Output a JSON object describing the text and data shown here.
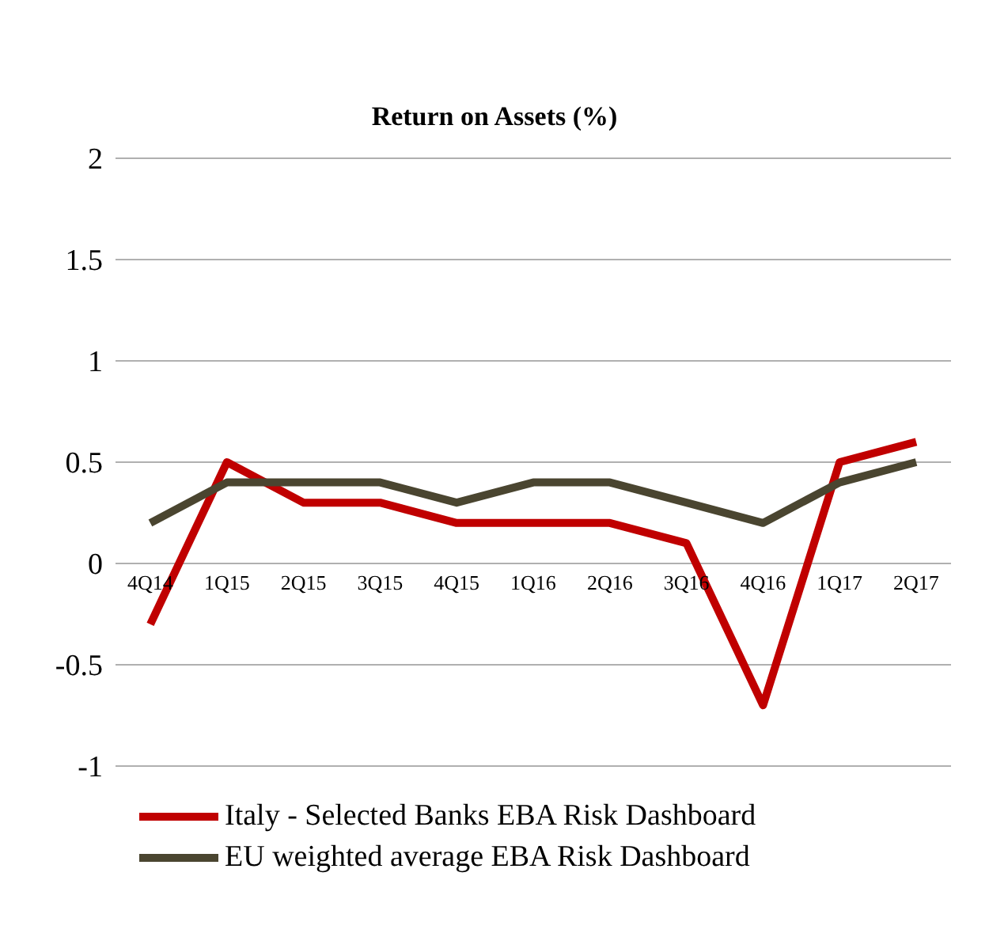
{
  "chart_data": {
    "type": "line",
    "title": "Return on Assets (%)",
    "categories": [
      "4Q14",
      "1Q15",
      "2Q15",
      "3Q15",
      "4Q15",
      "1Q16",
      "2Q16",
      "3Q16",
      "4Q16",
      "1Q17",
      "2Q17"
    ],
    "series": [
      {
        "name": "Italy - Selected Banks EBA Risk Dashboard",
        "color": "#c00000",
        "values": [
          -0.3,
          0.5,
          0.3,
          0.3,
          0.2,
          0.2,
          0.2,
          0.1,
          -0.7,
          0.5,
          0.6
        ]
      },
      {
        "name": "EU weighted average EBA Risk Dashboard",
        "color": "#4a4530",
        "values": [
          0.2,
          0.4,
          0.4,
          0.4,
          0.3,
          0.4,
          0.4,
          0.3,
          0.2,
          0.4,
          0.5
        ]
      }
    ],
    "ylim": [
      -1,
      2
    ],
    "yticks": [
      -1,
      -0.5,
      0,
      0.5,
      1,
      1.5,
      2
    ],
    "grid": "y",
    "legend": "bottom",
    "marker": "none",
    "line_style": "solid"
  }
}
